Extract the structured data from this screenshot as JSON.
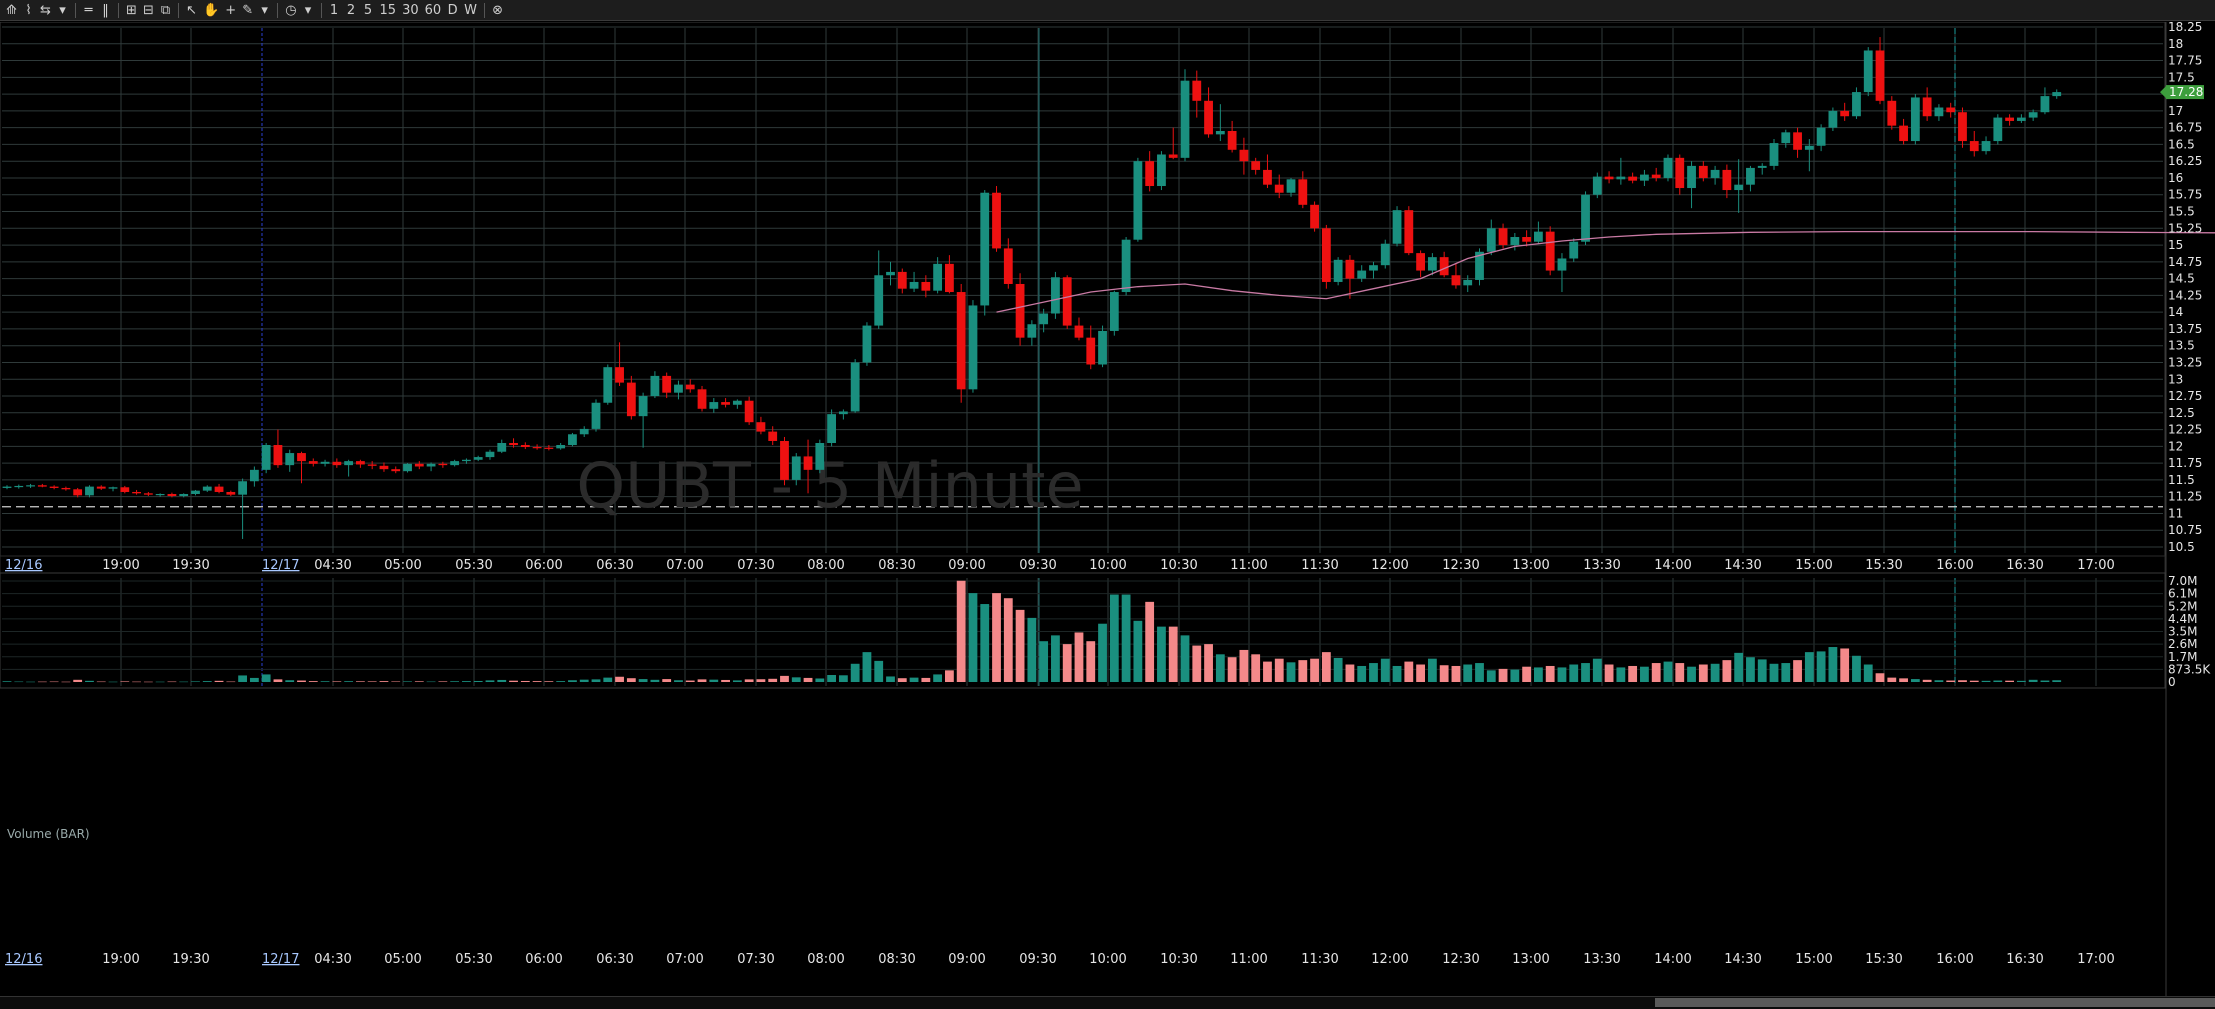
{
  "toolbar": {
    "buttons": [
      {
        "name": "chart-type-icon",
        "glyph": "⟰"
      },
      {
        "name": "draw-icon",
        "glyph": "⌇"
      },
      {
        "name": "link-icon",
        "glyph": "⇆"
      },
      {
        "name": "dropdown-icon",
        "glyph": "▾"
      },
      {
        "name": "hlines-icon",
        "glyph": "═"
      },
      {
        "name": "vlines-icon",
        "glyph": "‖"
      },
      {
        "name": "layout-icon",
        "glyph": "⊞"
      },
      {
        "name": "layout2-icon",
        "glyph": "⊟"
      },
      {
        "name": "layout3-icon",
        "glyph": "⧉"
      },
      {
        "name": "cursor-icon",
        "glyph": "↖"
      },
      {
        "name": "hand-icon",
        "glyph": "✋"
      },
      {
        "name": "crosshair-icon",
        "glyph": "+"
      },
      {
        "name": "pencil-icon",
        "glyph": "✎"
      },
      {
        "name": "pencil-dropdown-icon",
        "glyph": "▾"
      },
      {
        "name": "clock-icon",
        "glyph": "◷"
      },
      {
        "name": "clock-dropdown-icon",
        "glyph": "▾"
      }
    ],
    "intervals": [
      "1",
      "2",
      "5",
      "15",
      "30",
      "60",
      "D",
      "W"
    ],
    "close_glyph": "⊗"
  },
  "chart_data": {
    "type": "candlestick",
    "watermark": "QUBT - 5 Minute",
    "y_ticks": [
      "18.25",
      "18",
      "17.75",
      "17.5",
      "17.25",
      "17",
      "16.75",
      "16.5",
      "16.25",
      "16",
      "15.75",
      "15.5",
      "15.25",
      "15",
      "14.75",
      "14.5",
      "14.25",
      "14",
      "13.75",
      "13.5",
      "13.25",
      "13",
      "12.75",
      "12.5",
      "12.25",
      "12",
      "11.75",
      "11.5",
      "11.25",
      "11",
      "10.75",
      "10.5"
    ],
    "ylim": [
      10.5,
      18.25
    ],
    "last_price": "17.28",
    "reference_line": 11.1,
    "date_labels": [
      "12/16",
      "12/17"
    ],
    "time_labels": [
      "19:00",
      "19:30",
      "04:30",
      "05:00",
      "05:30",
      "06:00",
      "06:30",
      "07:00",
      "07:30",
      "08:00",
      "08:30",
      "09:00",
      "09:30",
      "10:00",
      "10:30",
      "11:00",
      "11:30",
      "12:00",
      "12:30",
      "13:00",
      "13:30",
      "14:00",
      "14:30",
      "15:00",
      "15:30",
      "16:00",
      "16:30",
      "17:00"
    ],
    "volume_panel": {
      "title": "Volume (BAR)",
      "y_ticks": [
        "7.0M",
        "6.1M",
        "5.2M",
        "4.4M",
        "3.5M",
        "2.6M",
        "1.7M",
        "873.5K",
        "0"
      ],
      "ylim": [
        0,
        7000000
      ]
    },
    "ohlc": [
      [
        11.38,
        11.42,
        11.36,
        11.4
      ],
      [
        11.4,
        11.43,
        11.37,
        11.41
      ],
      [
        11.41,
        11.44,
        11.38,
        11.42
      ],
      [
        11.42,
        11.44,
        11.39,
        11.4
      ],
      [
        11.4,
        11.42,
        11.36,
        11.38
      ],
      [
        11.38,
        11.4,
        11.34,
        11.36
      ],
      [
        11.36,
        11.38,
        11.24,
        11.27
      ],
      [
        11.27,
        11.42,
        11.24,
        11.4
      ],
      [
        11.4,
        11.42,
        11.35,
        11.37
      ],
      [
        11.37,
        11.4,
        11.33,
        11.39
      ],
      [
        11.39,
        11.41,
        11.3,
        11.32
      ],
      [
        11.32,
        11.35,
        11.28,
        11.3
      ],
      [
        11.3,
        11.32,
        11.26,
        11.28
      ],
      [
        11.28,
        11.3,
        11.25,
        11.29
      ],
      [
        11.29,
        11.31,
        11.24,
        11.26
      ],
      [
        11.26,
        11.3,
        11.24,
        11.29
      ],
      [
        11.29,
        11.35,
        11.27,
        11.34
      ],
      [
        11.34,
        11.42,
        11.32,
        11.4
      ],
      [
        11.4,
        11.44,
        11.3,
        11.32
      ],
      [
        11.32,
        11.34,
        11.26,
        11.28
      ],
      [
        11.28,
        11.52,
        10.62,
        11.48
      ],
      [
        11.48,
        11.7,
        11.4,
        11.65
      ],
      [
        11.65,
        12.05,
        11.6,
        12.02
      ],
      [
        12.02,
        12.25,
        11.68,
        11.72
      ],
      [
        11.72,
        11.95,
        11.62,
        11.9
      ],
      [
        11.9,
        11.92,
        11.45,
        11.78
      ],
      [
        11.78,
        11.82,
        11.7,
        11.74
      ],
      [
        11.74,
        11.8,
        11.7,
        11.77
      ],
      [
        11.77,
        11.82,
        11.68,
        11.72
      ],
      [
        11.72,
        11.8,
        11.55,
        11.78
      ],
      [
        11.78,
        11.8,
        11.68,
        11.73
      ],
      [
        11.73,
        11.78,
        11.66,
        11.71
      ],
      [
        11.71,
        11.76,
        11.62,
        11.66
      ],
      [
        11.66,
        11.7,
        11.6,
        11.63
      ],
      [
        11.63,
        11.75,
        11.61,
        11.74
      ],
      [
        11.74,
        11.78,
        11.66,
        11.7
      ],
      [
        11.7,
        11.76,
        11.63,
        11.74
      ],
      [
        11.74,
        11.77,
        11.68,
        11.72
      ],
      [
        11.72,
        11.8,
        11.7,
        11.78
      ],
      [
        11.78,
        11.82,
        11.74,
        11.8
      ],
      [
        11.8,
        11.86,
        11.78,
        11.84
      ],
      [
        11.84,
        11.95,
        11.8,
        11.92
      ],
      [
        11.92,
        12.1,
        11.9,
        12.05
      ],
      [
        12.05,
        12.12,
        11.98,
        12.02
      ],
      [
        12.02,
        12.06,
        11.96,
        11.99
      ],
      [
        11.99,
        12.03,
        11.95,
        11.98
      ],
      [
        11.98,
        12.02,
        11.94,
        11.97
      ],
      [
        11.97,
        12.05,
        11.95,
        12.02
      ],
      [
        12.02,
        12.2,
        12.0,
        12.18
      ],
      [
        12.18,
        12.3,
        12.14,
        12.26
      ],
      [
        12.26,
        12.7,
        12.22,
        12.65
      ],
      [
        12.65,
        13.22,
        12.62,
        13.18
      ],
      [
        13.18,
        13.55,
        12.9,
        12.95
      ],
      [
        12.95,
        13.05,
        12.4,
        12.45
      ],
      [
        12.45,
        12.8,
        11.98,
        12.75
      ],
      [
        12.75,
        13.12,
        12.72,
        13.05
      ],
      [
        13.05,
        13.1,
        12.72,
        12.8
      ],
      [
        12.8,
        12.98,
        12.7,
        12.92
      ],
      [
        12.92,
        13.0,
        12.8,
        12.85
      ],
      [
        12.85,
        12.9,
        12.52,
        12.56
      ],
      [
        12.56,
        12.72,
        12.5,
        12.66
      ],
      [
        12.66,
        12.72,
        12.58,
        12.62
      ],
      [
        12.62,
        12.7,
        12.56,
        12.68
      ],
      [
        12.68,
        12.74,
        12.32,
        12.36
      ],
      [
        12.36,
        12.44,
        12.18,
        12.22
      ],
      [
        12.22,
        12.3,
        12.02,
        12.08
      ],
      [
        12.08,
        12.14,
        11.42,
        11.5
      ],
      [
        11.5,
        11.9,
        11.42,
        11.85
      ],
      [
        11.85,
        12.1,
        11.3,
        11.65
      ],
      [
        11.65,
        12.1,
        11.6,
        12.05
      ],
      [
        12.05,
        12.55,
        12.0,
        12.48
      ],
      [
        12.48,
        12.55,
        12.4,
        12.52
      ],
      [
        12.52,
        13.3,
        12.5,
        13.25
      ],
      [
        13.25,
        13.85,
        13.2,
        13.8
      ],
      [
        13.8,
        14.92,
        13.75,
        14.55
      ],
      [
        14.55,
        14.75,
        14.4,
        14.6
      ],
      [
        14.6,
        14.65,
        14.28,
        14.35
      ],
      [
        14.35,
        14.6,
        14.3,
        14.45
      ],
      [
        14.45,
        14.55,
        14.22,
        14.32
      ],
      [
        14.32,
        14.82,
        14.28,
        14.72
      ],
      [
        14.72,
        14.85,
        14.28,
        14.3
      ],
      [
        14.3,
        14.42,
        12.65,
        12.85
      ],
      [
        12.85,
        14.18,
        12.8,
        14.1
      ],
      [
        14.1,
        15.82,
        13.95,
        15.78
      ],
      [
        15.78,
        15.88,
        14.9,
        14.95
      ],
      [
        14.95,
        15.1,
        14.35,
        14.42
      ],
      [
        14.42,
        14.58,
        13.5,
        13.62
      ],
      [
        13.62,
        13.88,
        13.5,
        13.82
      ],
      [
        13.82,
        14.05,
        13.7,
        13.98
      ],
      [
        13.98,
        14.6,
        13.9,
        14.52
      ],
      [
        14.52,
        14.55,
        13.75,
        13.8
      ],
      [
        13.8,
        13.92,
        13.58,
        13.62
      ],
      [
        13.62,
        13.8,
        13.15,
        13.22
      ],
      [
        13.22,
        13.8,
        13.18,
        13.72
      ],
      [
        13.72,
        14.32,
        13.65,
        14.3
      ],
      [
        14.3,
        15.12,
        14.25,
        15.08
      ],
      [
        15.08,
        16.3,
        15.05,
        16.25
      ],
      [
        16.25,
        16.4,
        15.8,
        15.88
      ],
      [
        15.88,
        16.4,
        15.82,
        16.35
      ],
      [
        16.35,
        16.75,
        16.28,
        16.3
      ],
      [
        16.3,
        17.62,
        16.25,
        17.45
      ],
      [
        17.45,
        17.6,
        16.9,
        17.15
      ],
      [
        17.15,
        17.35,
        16.6,
        16.65
      ],
      [
        16.65,
        17.1,
        16.55,
        16.7
      ],
      [
        16.7,
        16.85,
        16.38,
        16.42
      ],
      [
        16.42,
        16.6,
        16.05,
        16.25
      ],
      [
        16.25,
        16.3,
        16.05,
        16.12
      ],
      [
        16.12,
        16.35,
        15.85,
        15.9
      ],
      [
        15.9,
        16.05,
        15.7,
        15.78
      ],
      [
        15.78,
        16.0,
        15.72,
        15.98
      ],
      [
        15.98,
        16.1,
        15.55,
        15.6
      ],
      [
        15.6,
        15.65,
        15.2,
        15.25
      ],
      [
        15.25,
        15.3,
        14.35,
        14.45
      ],
      [
        14.45,
        14.82,
        14.4,
        14.78
      ],
      [
        14.78,
        14.85,
        14.2,
        14.5
      ],
      [
        14.5,
        14.7,
        14.45,
        14.62
      ],
      [
        14.62,
        14.75,
        14.5,
        14.7
      ],
      [
        14.7,
        15.08,
        14.65,
        15.02
      ],
      [
        15.02,
        15.58,
        14.98,
        15.52
      ],
      [
        15.52,
        15.58,
        14.85,
        14.88
      ],
      [
        14.88,
        14.92,
        14.52,
        14.62
      ],
      [
        14.62,
        14.88,
        14.55,
        14.82
      ],
      [
        14.82,
        14.9,
        14.52,
        14.55
      ],
      [
        14.55,
        14.72,
        14.35,
        14.4
      ],
      [
        14.4,
        14.55,
        14.3,
        14.48
      ],
      [
        14.48,
        14.95,
        14.4,
        14.9
      ],
      [
        14.9,
        15.38,
        14.85,
        15.25
      ],
      [
        15.25,
        15.32,
        14.95,
        15.0
      ],
      [
        15.0,
        15.18,
        14.92,
        15.12
      ],
      [
        15.12,
        15.22,
        14.98,
        15.05
      ],
      [
        15.05,
        15.35,
        15.02,
        15.2
      ],
      [
        15.2,
        15.28,
        14.55,
        14.62
      ],
      [
        14.62,
        14.88,
        14.3,
        14.8
      ],
      [
        14.8,
        15.1,
        14.75,
        15.05
      ],
      [
        15.05,
        15.8,
        15.0,
        15.75
      ],
      [
        15.75,
        16.08,
        15.7,
        16.02
      ],
      [
        16.02,
        16.1,
        15.92,
        15.98
      ],
      [
        15.98,
        16.3,
        15.9,
        16.02
      ],
      [
        16.02,
        16.08,
        15.92,
        15.96
      ],
      [
        15.96,
        16.12,
        15.88,
        16.05
      ],
      [
        16.05,
        16.15,
        15.95,
        16.0
      ],
      [
        16.0,
        16.35,
        15.95,
        16.3
      ],
      [
        16.3,
        16.35,
        15.75,
        15.85
      ],
      [
        15.85,
        16.25,
        15.55,
        16.18
      ],
      [
        16.18,
        16.25,
        15.95,
        16.0
      ],
      [
        16.0,
        16.18,
        15.9,
        16.12
      ],
      [
        16.12,
        16.2,
        15.7,
        15.82
      ],
      [
        15.82,
        16.28,
        15.48,
        15.9
      ],
      [
        15.9,
        16.18,
        15.8,
        16.15
      ],
      [
        16.15,
        16.22,
        16.05,
        16.18
      ],
      [
        16.18,
        16.58,
        16.12,
        16.52
      ],
      [
        16.52,
        16.72,
        16.45,
        16.68
      ],
      [
        16.68,
        16.75,
        16.3,
        16.42
      ],
      [
        16.42,
        16.58,
        16.1,
        16.48
      ],
      [
        16.48,
        16.8,
        16.4,
        16.75
      ],
      [
        16.75,
        17.05,
        16.7,
        17.0
      ],
      [
        17.0,
        17.12,
        16.85,
        16.92
      ],
      [
        16.92,
        17.35,
        16.88,
        17.28
      ],
      [
        17.28,
        17.95,
        17.22,
        17.9
      ],
      [
        17.9,
        18.1,
        17.1,
        17.15
      ],
      [
        17.15,
        17.22,
        16.72,
        16.78
      ],
      [
        16.78,
        16.88,
        16.5,
        16.55
      ],
      [
        16.55,
        17.25,
        16.5,
        17.2
      ],
      [
        17.2,
        17.35,
        16.85,
        16.92
      ],
      [
        16.92,
        17.1,
        16.85,
        17.05
      ],
      [
        17.05,
        17.12,
        16.9,
        16.98
      ],
      [
        16.98,
        17.05,
        16.45,
        16.55
      ],
      [
        16.55,
        16.7,
        16.32,
        16.4
      ],
      [
        16.4,
        16.62,
        16.35,
        16.55
      ],
      [
        16.55,
        16.95,
        16.5,
        16.9
      ],
      [
        16.9,
        16.95,
        16.78,
        16.85
      ],
      [
        16.85,
        16.95,
        16.82,
        16.9
      ],
      [
        16.9,
        17.02,
        16.85,
        16.98
      ],
      [
        16.98,
        17.35,
        16.95,
        17.22
      ],
      [
        17.22,
        17.32,
        17.18,
        17.28
      ]
    ],
    "volume": [
      50,
      30,
      20,
      25,
      30,
      20,
      150,
      80,
      30,
      20,
      40,
      25,
      20,
      20,
      30,
      25,
      40,
      60,
      80,
      30,
      450,
      280,
      520,
      180,
      120,
      100,
      60,
      50,
      40,
      55,
      45,
      40,
      60,
      35,
      40,
      45,
      30,
      40,
      50,
      60,
      70,
      110,
      140,
      90,
      70,
      60,
      50,
      60,
      120,
      160,
      180,
      300,
      360,
      260,
      200,
      150,
      200,
      120,
      100,
      180,
      160,
      140,
      110,
      180,
      190,
      220,
      420,
      320,
      280,
      240,
      480,
      460,
      1250,
      2050,
      1450,
      380,
      260,
      300,
      280,
      520,
      800,
      6950,
      6100,
      5350,
      6100,
      5750,
      4950,
      4400,
      2800,
      3200,
      2600,
      3400,
      2800,
      4000,
      6000,
      6000,
      4200,
      5500,
      3800,
      3800,
      3200,
      2500,
      2600,
      1900,
      1700,
      2200,
      1900,
      1400,
      1600,
      1350,
      1500,
      1600,
      2050,
      1650,
      1200,
      1100,
      1300,
      1600,
      1100,
      1400,
      1200,
      1600,
      1150,
      1100,
      1200,
      1300,
      800,
      900,
      850,
      1050,
      1000,
      1100,
      1000,
      1200,
      1300,
      1600,
      1200,
      1000,
      1100,
      1050,
      1300,
      1400,
      1300,
      1050,
      1200,
      1250,
      1500,
      2000,
      1700,
      1550,
      1250,
      1300,
      1500,
      2050,
      2100,
      2400,
      2300,
      1800,
      1200,
      600,
      300,
      250,
      200,
      150,
      120,
      100,
      120,
      90,
      80,
      100,
      90,
      80,
      150,
      100,
      120
    ],
    "vwap": [
      [
        84,
        14.0
      ],
      [
        88,
        14.15
      ],
      [
        92,
        14.3
      ],
      [
        96,
        14.38
      ],
      [
        100,
        14.42
      ],
      [
        104,
        14.32
      ],
      [
        108,
        14.25
      ],
      [
        112,
        14.2
      ],
      [
        116,
        14.35
      ],
      [
        120,
        14.5
      ],
      [
        124,
        14.8
      ],
      [
        128,
        14.98
      ],
      [
        132,
        15.06
      ],
      [
        136,
        15.12
      ],
      [
        140,
        15.16
      ],
      [
        148,
        15.19
      ],
      [
        156,
        15.2
      ],
      [
        164,
        15.2
      ],
      [
        172,
        15.2
      ],
      [
        180,
        15.19
      ],
      [
        190,
        15.18
      ],
      [
        200,
        15.16
      ],
      [
        210,
        15.16
      ],
      [
        220,
        15.17
      ],
      [
        230,
        15.18
      ],
      [
        240,
        15.21
      ],
      [
        250,
        15.22
      ],
      [
        260,
        15.24
      ],
      [
        270,
        15.27
      ],
      [
        280,
        15.32
      ],
      [
        290,
        15.38
      ],
      [
        296,
        15.44
      ],
      [
        300,
        15.48
      ],
      [
        304,
        15.52
      ]
    ],
    "colors": {
      "up": "#1a8f7f",
      "down": "#ee1111",
      "vol_up": "#1a8f7f",
      "vol_down": "#f4898a",
      "grid": "#2f3a3a",
      "vwap": "#c97aa4",
      "last": "#3d9e3d"
    }
  }
}
